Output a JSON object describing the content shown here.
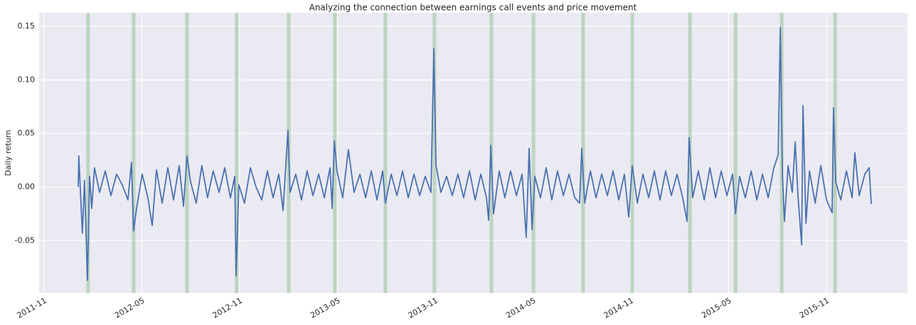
{
  "chart_data": {
    "type": "line",
    "title": "Analyzing the connection between earnings call events and price movement",
    "y_label": "Daily return",
    "color": "#4c72b0",
    "event_color": "#8fbc8f",
    "grid": true,
    "x": [
      2012.008,
      2012.011,
      2012.022,
      2012.029,
      2012.04,
      2012.055,
      2012.066,
      2012.077,
      2012.091,
      2012.117,
      2012.146,
      2012.175,
      2012.204,
      2012.233,
      2012.262,
      2012.28,
      2012.291,
      2012.306,
      2012.335,
      2012.364,
      2012.386,
      2012.408,
      2012.437,
      2012.466,
      2012.495,
      2012.524,
      2012.546,
      2012.564,
      2012.582,
      2012.611,
      2012.64,
      2012.669,
      2012.698,
      2012.728,
      2012.757,
      2012.786,
      2012.808,
      2012.815,
      2012.829,
      2012.858,
      2012.888,
      2012.917,
      2012.946,
      2012.975,
      2013.004,
      2013.033,
      2013.055,
      2013.08,
      2013.091,
      2013.12,
      2013.149,
      2013.178,
      2013.208,
      2013.237,
      2013.266,
      2013.295,
      2013.306,
      2013.317,
      2013.331,
      2013.36,
      2013.389,
      2013.418,
      2013.448,
      2013.477,
      2013.506,
      2013.535,
      2013.564,
      2013.578,
      2013.608,
      2013.637,
      2013.666,
      2013.695,
      2013.724,
      2013.753,
      2013.782,
      2013.811,
      2013.826,
      2013.837,
      2013.862,
      2013.891,
      2013.92,
      2013.949,
      2013.978,
      2014.008,
      2014.037,
      2014.066,
      2014.095,
      2014.106,
      2014.117,
      2014.131,
      2014.16,
      2014.189,
      2014.218,
      2014.248,
      2014.277,
      2014.298,
      2014.313,
      2014.328,
      2014.342,
      2014.371,
      2014.4,
      2014.429,
      2014.458,
      2014.488,
      2014.517,
      2014.546,
      2014.571,
      2014.582,
      2014.597,
      2014.626,
      2014.655,
      2014.684,
      2014.713,
      2014.742,
      2014.771,
      2014.8,
      2014.822,
      2014.84,
      2014.866,
      2014.895,
      2014.924,
      2014.953,
      2014.982,
      2015.011,
      2015.04,
      2015.069,
      2015.098,
      2015.12,
      2015.131,
      2015.149,
      2015.178,
      2015.208,
      2015.237,
      2015.266,
      2015.295,
      2015.324,
      2015.353,
      2015.368,
      2015.389,
      2015.418,
      2015.448,
      2015.477,
      2015.506,
      2015.535,
      2015.564,
      2015.586,
      2015.597,
      2015.608,
      2015.618,
      2015.637,
      2015.658,
      2015.673,
      2015.688,
      2015.706,
      2015.713,
      2015.728,
      2015.746,
      2015.775,
      2015.804,
      2015.833,
      2015.862,
      2015.869,
      2015.88,
      2015.906,
      2015.935,
      2015.964,
      2015.978,
      2016.0,
      2016.029,
      2016.051,
      2016.062
    ],
    "values": [
      0.0,
      0.029,
      -0.015,
      -0.043,
      0.006,
      -0.087,
      0.01,
      -0.02,
      0.018,
      -0.005,
      0.015,
      -0.008,
      0.012,
      0.002,
      -0.012,
      0.023,
      -0.041,
      -0.02,
      0.012,
      -0.01,
      -0.036,
      0.016,
      -0.015,
      0.018,
      -0.012,
      0.02,
      -0.018,
      0.029,
      0.005,
      -0.015,
      0.02,
      -0.01,
      0.015,
      -0.005,
      0.018,
      -0.01,
      0.01,
      -0.083,
      0.002,
      -0.015,
      0.018,
      0.0,
      -0.012,
      0.015,
      -0.01,
      0.012,
      -0.022,
      0.053,
      -0.005,
      0.012,
      -0.012,
      0.015,
      -0.008,
      0.012,
      -0.01,
      0.018,
      -0.02,
      0.043,
      0.015,
      -0.01,
      0.035,
      -0.005,
      0.012,
      -0.01,
      0.015,
      -0.012,
      0.015,
      -0.015,
      0.012,
      -0.008,
      0.015,
      -0.01,
      0.012,
      -0.008,
      0.01,
      -0.005,
      0.129,
      0.02,
      -0.005,
      0.01,
      -0.008,
      0.012,
      -0.01,
      0.015,
      -0.012,
      0.012,
      -0.01,
      -0.031,
      0.039,
      -0.025,
      0.015,
      -0.01,
      0.015,
      -0.008,
      0.012,
      -0.047,
      0.036,
      -0.04,
      0.01,
      -0.01,
      0.018,
      -0.012,
      0.015,
      -0.008,
      0.012,
      -0.01,
      -0.015,
      0.036,
      -0.015,
      0.015,
      -0.01,
      0.012,
      -0.008,
      0.015,
      -0.012,
      0.012,
      -0.028,
      0.02,
      -0.015,
      0.012,
      -0.01,
      0.015,
      -0.012,
      0.015,
      -0.008,
      0.012,
      -0.01,
      -0.032,
      0.046,
      -0.01,
      0.015,
      -0.012,
      0.018,
      -0.01,
      0.015,
      -0.008,
      0.012,
      -0.025,
      0.01,
      -0.01,
      0.015,
      -0.012,
      0.012,
      -0.01,
      0.018,
      0.03,
      0.149,
      0.01,
      -0.032,
      0.02,
      -0.005,
      0.042,
      -0.01,
      -0.054,
      0.076,
      -0.034,
      0.015,
      -0.015,
      0.02,
      -0.012,
      -0.024,
      0.074,
      0.005,
      -0.012,
      0.015,
      -0.01,
      0.032,
      -0.008,
      0.012,
      0.018,
      -0.016
    ],
    "events": [
      2012.058,
      2012.291,
      2012.564,
      2012.818,
      2013.084,
      2013.32,
      2013.578,
      2013.829,
      2014.12,
      2014.335,
      2014.589,
      2014.84,
      2015.135,
      2015.368,
      2015.604,
      2015.877
    ],
    "xlim": [
      2011.808,
      2016.247
    ],
    "xticks": [
      {
        "value": 2011.833,
        "label": "2011-11"
      },
      {
        "value": 2012.333,
        "label": "2012-05"
      },
      {
        "value": 2012.833,
        "label": "2012-11"
      },
      {
        "value": 2013.333,
        "label": "2013-05"
      },
      {
        "value": 2013.833,
        "label": "2013-11"
      },
      {
        "value": 2014.333,
        "label": "2014-05"
      },
      {
        "value": 2014.833,
        "label": "2014-11"
      },
      {
        "value": 2015.333,
        "label": "2015-05"
      },
      {
        "value": 2015.833,
        "label": "2015-11"
      }
    ],
    "ylim": [
      -0.0989,
      0.1626
    ],
    "yticks": [
      -0.05,
      {
        "value": 0,
        "label": "0.00"
      },
      0.05,
      {
        "value": 0.1,
        "label": "0.10"
      },
      0.15
    ]
  }
}
